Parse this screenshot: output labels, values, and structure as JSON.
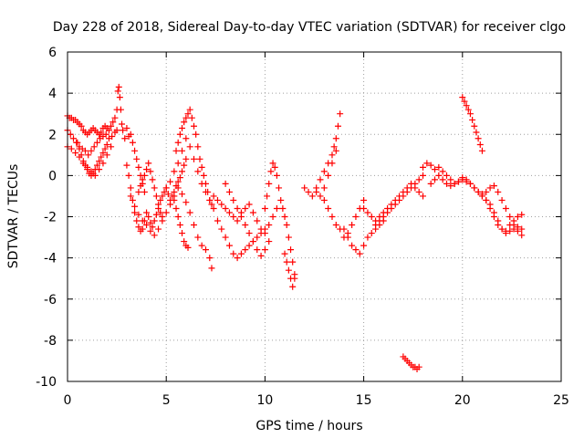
{
  "chart_data": {
    "type": "scatter",
    "title": "Day 228 of 2018, Sidereal Day-to-day VTEC variation (SDTVAR) for receiver clgo",
    "xlabel": "GPS time / hours",
    "ylabel": "SDTVAR / TECUs",
    "xlim": [
      0,
      25
    ],
    "ylim": [
      -10,
      6
    ],
    "xticks": [
      "0",
      "5",
      "10",
      "15",
      "20",
      "25"
    ],
    "yticks": [
      "-10",
      "-8",
      "-6",
      "-4",
      "-2",
      "0",
      "2",
      "4",
      "6"
    ],
    "grid": true,
    "marker": "plus",
    "color": "#ff0000",
    "series": [
      {
        "name": "SDTVAR",
        "x": [
          0.0,
          0.1,
          0.2,
          0.3,
          0.4,
          0.5,
          0.6,
          0.7,
          0.8,
          0.9,
          1.0,
          1.1,
          1.2,
          1.3,
          1.4,
          1.5,
          1.6,
          1.7,
          1.8,
          1.9,
          2.0,
          2.1,
          2.2,
          2.3,
          2.4,
          2.5,
          2.55,
          2.6,
          2.65,
          2.7,
          2.75,
          2.8,
          2.9,
          3.0,
          3.1,
          3.2,
          3.3,
          3.4,
          3.5,
          3.6,
          3.7,
          3.8,
          3.9,
          0.0,
          0.15,
          0.3,
          0.45,
          0.6,
          0.75,
          0.9,
          1.05,
          1.2,
          1.35,
          1.5,
          1.65,
          1.8,
          1.95,
          2.1,
          2.25,
          2.4,
          2.5,
          0.0,
          0.2,
          0.4,
          0.6,
          0.8,
          1.0,
          1.2,
          1.4,
          1.6,
          1.8,
          2.0,
          2.2,
          0.5,
          0.6,
          0.7,
          0.8,
          0.9,
          1.0,
          1.1,
          1.2,
          1.3,
          1.4,
          1.5,
          1.6,
          1.7,
          1.8,
          1.9,
          2.0,
          3.0,
          3.1,
          3.2,
          3.3,
          3.4,
          3.5,
          3.6,
          3.7,
          3.8,
          3.9,
          4.0,
          4.1,
          4.2,
          4.3,
          4.4,
          4.5,
          4.6,
          4.7,
          4.8,
          4.9,
          5.0,
          5.1,
          5.2,
          5.3,
          5.4,
          5.5,
          5.6,
          5.7,
          5.8,
          5.9,
          6.0,
          3.2,
          3.4,
          3.6,
          3.8,
          4.0,
          4.2,
          4.4,
          4.6,
          4.8,
          5.0,
          5.2,
          5.4,
          5.6,
          5.8,
          6.0,
          6.2,
          6.4,
          6.6,
          6.8,
          7.0,
          7.2,
          7.3,
          3.6,
          3.7,
          3.8,
          3.9,
          4.0,
          4.1,
          4.2,
          4.3,
          4.4,
          4.5,
          4.6,
          4.7,
          4.8,
          5.0,
          5.2,
          5.4,
          5.6,
          5.8,
          6.0,
          6.2,
          6.4,
          6.6,
          6.8,
          7.0,
          7.2,
          5.5,
          5.6,
          5.7,
          5.8,
          5.9,
          6.0,
          6.1,
          6.2,
          6.3,
          6.4,
          6.5,
          6.6,
          6.7,
          6.8,
          6.9,
          7.0,
          7.1,
          7.2,
          7.3,
          7.4,
          5.4,
          5.5,
          5.6,
          5.7,
          5.8,
          5.9,
          6.0,
          6.1,
          7.4,
          7.6,
          7.8,
          8.0,
          8.2,
          8.4,
          8.6,
          8.8,
          9.0,
          9.2,
          9.4,
          9.6,
          9.8,
          10.0,
          10.2,
          10.4,
          10.6,
          7.6,
          7.8,
          8.0,
          8.2,
          8.4,
          8.6,
          8.8,
          9.0,
          9.2,
          9.4,
          9.6,
          9.8,
          10.0,
          8.0,
          8.2,
          8.4,
          8.6,
          8.8,
          9.0,
          9.2,
          9.4,
          9.6,
          9.8,
          10.0,
          10.2,
          10.0,
          10.1,
          10.2,
          10.3,
          10.4,
          10.5,
          10.6,
          10.7,
          10.8,
          10.9,
          11.0,
          11.1,
          11.2,
          11.3,
          11.4,
          11.5,
          11.0,
          11.1,
          11.2,
          11.3,
          11.4,
          11.5,
          12.0,
          12.2,
          12.4,
          12.6,
          12.8,
          13.0,
          13.2,
          13.4,
          13.5,
          13.6,
          13.7,
          13.8,
          12.6,
          12.8,
          13.0,
          13.2,
          13.4,
          13.6,
          13.0,
          13.2,
          13.4,
          13.6,
          13.8,
          14.0,
          14.2,
          14.4,
          14.6,
          14.8,
          15.0,
          14.0,
          14.2,
          14.4,
          14.6,
          14.8,
          15.0,
          15.2,
          15.4,
          15.6,
          15.8,
          16.0,
          15.0,
          15.2,
          15.4,
          15.6,
          15.8,
          16.0,
          16.2,
          16.4,
          16.6,
          16.8,
          17.0,
          17.2,
          17.4,
          17.6,
          17.8,
          18.0,
          15.6,
          15.8,
          16.0,
          16.2,
          16.4,
          16.6,
          16.8,
          17.0,
          17.2,
          17.4,
          17.6,
          17.8,
          18.0,
          17.0,
          17.1,
          17.2,
          17.3,
          17.4,
          17.5,
          17.6,
          17.7,
          17.8,
          18.0,
          18.2,
          18.4,
          18.6,
          18.8,
          19.0,
          19.2,
          19.4,
          19.6,
          19.8,
          20.0,
          20.2,
          20.4,
          20.6,
          20.8,
          21.0,
          18.4,
          18.6,
          18.8,
          19.0,
          19.2,
          19.4,
          19.6,
          19.8,
          20.0,
          20.2,
          20.4,
          20.6,
          20.8,
          21.0,
          21.2,
          21.4,
          21.6,
          21.8,
          22.0,
          22.2,
          22.4,
          22.6,
          22.8,
          23.0,
          20.8,
          21.0,
          21.2,
          21.4,
          21.6,
          21.8,
          22.0,
          22.2,
          22.4,
          22.6,
          22.8,
          23.0,
          21.2,
          21.4,
          21.6,
          21.8,
          22.0,
          22.2,
          22.4,
          22.6,
          22.8,
          23.0,
          20.0,
          20.1,
          20.2,
          20.3,
          20.4,
          20.5,
          20.6,
          20.7,
          20.8,
          20.9,
          21.0
        ],
        "y": [
          2.9,
          2.8,
          2.8,
          2.7,
          2.7,
          2.6,
          2.5,
          2.4,
          2.2,
          2.1,
          2.0,
          2.1,
          2.2,
          2.3,
          2.2,
          2.1,
          2.0,
          2.1,
          2.3,
          2.4,
          2.3,
          2.2,
          2.4,
          2.6,
          2.8,
          3.2,
          4.1,
          4.3,
          3.8,
          3.2,
          2.5,
          2.2,
          1.8,
          2.3,
          1.9,
          2.0,
          1.6,
          1.2,
          0.8,
          0.4,
          0.0,
          -0.4,
          -0.8,
          2.2,
          2.0,
          1.8,
          1.6,
          1.4,
          1.3,
          1.2,
          1.0,
          1.2,
          1.4,
          1.6,
          1.8,
          1.9,
          2.0,
          1.8,
          1.9,
          2.1,
          2.2,
          1.4,
          1.3,
          1.1,
          0.9,
          0.6,
          0.4,
          0.2,
          0.0,
          0.3,
          0.6,
          1.0,
          1.4,
          1.6,
          1.3,
          1.0,
          0.7,
          0.5,
          0.3,
          0.1,
          0.0,
          0.1,
          0.3,
          0.5,
          0.7,
          0.9,
          1.1,
          1.3,
          1.5,
          0.5,
          0.0,
          -0.6,
          -1.2,
          -1.8,
          -2.2,
          -2.5,
          -2.7,
          -2.6,
          -2.2,
          -1.8,
          -2.0,
          -2.3,
          -2.5,
          -2.2,
          -1.9,
          -1.6,
          -1.2,
          -1.0,
          -0.8,
          -0.6,
          -0.9,
          -1.2,
          -1.0,
          -0.8,
          -0.5,
          -0.3,
          -0.1,
          0.2,
          0.5,
          0.8,
          -1.0,
          -1.5,
          -1.9,
          -2.2,
          -2.4,
          -2.7,
          -2.9,
          -2.6,
          -2.2,
          -1.8,
          -1.4,
          -1.0,
          -0.6,
          -0.9,
          -1.3,
          -1.8,
          -2.4,
          -3.0,
          -3.4,
          -3.6,
          -4.0,
          -4.5,
          -0.8,
          -0.5,
          -0.2,
          0.0,
          0.3,
          0.6,
          0.2,
          -0.2,
          -0.6,
          -1.0,
          -1.4,
          -1.8,
          -2.0,
          -0.6,
          -0.3,
          0.2,
          0.6,
          1.2,
          1.8,
          1.4,
          0.8,
          0.2,
          -0.4,
          -0.8,
          -1.2,
          1.2,
          1.6,
          2.0,
          2.3,
          2.6,
          2.8,
          3.0,
          3.2,
          2.8,
          2.4,
          2.0,
          1.4,
          0.8,
          0.4,
          0.0,
          -0.4,
          -0.8,
          -1.2,
          -1.4,
          -1.6,
          -1.2,
          -1.6,
          -2.0,
          -2.4,
          -2.8,
          -3.2,
          -3.4,
          -3.5,
          -1.0,
          -1.2,
          -1.4,
          -1.6,
          -1.8,
          -2.0,
          -2.2,
          -1.8,
          -1.6,
          -1.4,
          -1.8,
          -2.2,
          -2.6,
          -2.8,
          -2.4,
          -2.0,
          -1.6,
          -2.2,
          -2.6,
          -3.0,
          -3.4,
          -3.8,
          -4.0,
          -3.8,
          -3.6,
          -3.4,
          -3.2,
          -3.0,
          -2.8,
          -2.6,
          -0.4,
          -0.8,
          -1.2,
          -1.6,
          -2.0,
          -2.4,
          -2.8,
          -3.2,
          -3.6,
          -3.9,
          -3.6,
          -3.2,
          -1.6,
          -1.0,
          -0.4,
          0.2,
          0.6,
          0.4,
          0.0,
          -0.6,
          -1.2,
          -1.6,
          -2.0,
          -2.4,
          -3.0,
          -3.6,
          -4.2,
          -4.8,
          -3.8,
          -4.2,
          -4.6,
          -5.0,
          -5.4,
          -5.0,
          -0.6,
          -0.8,
          -1.0,
          -0.6,
          -0.2,
          0.2,
          0.6,
          1.0,
          1.4,
          1.8,
          2.4,
          3.0,
          -0.8,
          -1.0,
          -0.6,
          0.0,
          0.6,
          1.2,
          -1.2,
          -1.6,
          -2.0,
          -2.4,
          -2.6,
          -3.0,
          -2.8,
          -2.4,
          -2.0,
          -1.6,
          -1.2,
          -2.6,
          -3.0,
          -3.4,
          -3.6,
          -3.8,
          -3.4,
          -3.0,
          -2.8,
          -2.6,
          -2.4,
          -2.2,
          -1.6,
          -1.8,
          -2.0,
          -2.2,
          -2.0,
          -1.8,
          -1.6,
          -1.4,
          -1.2,
          -1.0,
          -0.8,
          -0.6,
          -0.4,
          -0.6,
          -0.8,
          -1.0,
          -2.4,
          -2.2,
          -2.0,
          -1.8,
          -1.6,
          -1.4,
          -1.2,
          -1.0,
          -0.8,
          -0.6,
          -0.4,
          -0.2,
          0.0,
          -8.8,
          -8.9,
          -9.0,
          -9.1,
          -9.2,
          -9.3,
          -9.3,
          -9.4,
          -9.3,
          0.4,
          0.6,
          0.5,
          0.3,
          0.4,
          0.2,
          0.0,
          -0.2,
          -0.4,
          -0.3,
          -0.1,
          -0.2,
          -0.4,
          -0.6,
          -0.8,
          -0.9,
          -0.4,
          -0.2,
          0.0,
          -0.2,
          -0.4,
          -0.5,
          -0.4,
          -0.3,
          -0.2,
          -0.3,
          -0.4,
          -0.6,
          -0.8,
          -1.0,
          -1.2,
          -1.4,
          -1.8,
          -2.2,
          -2.6,
          -2.8,
          -2.7,
          -2.6,
          -2.5,
          -2.6,
          -0.8,
          -1.0,
          -1.2,
          -1.6,
          -2.0,
          -2.4,
          -2.6,
          -2.7,
          -2.4,
          -2.2,
          -2.0,
          -1.9,
          -0.8,
          -0.6,
          -0.5,
          -0.8,
          -1.2,
          -1.6,
          -2.0,
          -2.4,
          -2.7,
          -2.9,
          3.8,
          3.6,
          3.4,
          3.2,
          3.0,
          2.7,
          2.4,
          2.1,
          1.8,
          1.5,
          1.2
        ]
      }
    ]
  }
}
